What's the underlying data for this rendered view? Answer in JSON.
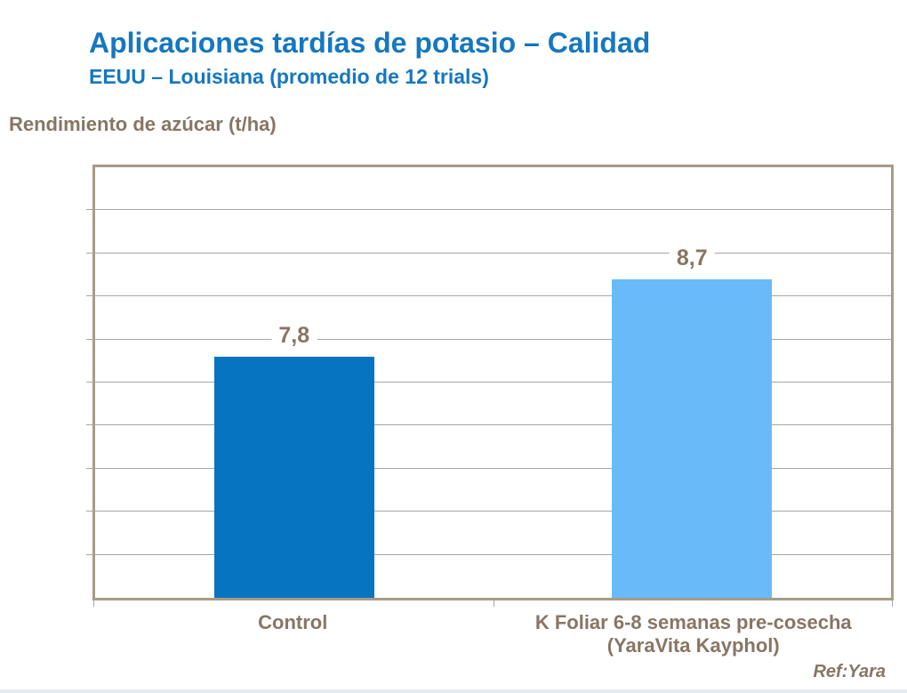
{
  "header": {
    "title": "Aplicaciones tardías de potasio – Calidad",
    "subtitle": "EEUU – Louisiana (promedio de 12 trials)"
  },
  "footer": {
    "reference": "Ref:Yara"
  },
  "colors": {
    "heading_blue": "#1577C0",
    "text_brown": "#877663",
    "bar_control": "#0774C2",
    "bar_treatment": "#68BBF8",
    "plot_border": "#A89B89",
    "gridline": "#A6A6A6",
    "bottom_strip": "#E4EBF3"
  },
  "chart_data": {
    "type": "bar",
    "title": "Aplicaciones tardías de potasio – Calidad",
    "subtitle": "EEUU – Louisiana (promedio de 12 trials)",
    "ylabel": "Rendimiento de azúcar (t/ha)",
    "xlabel": "",
    "categories": [
      "Control",
      "K Foliar 6-8 semanas pre-cosecha\n(YaraVita Kayphol)"
    ],
    "values": [
      7.8,
      8.7
    ],
    "value_labels": [
      "7,8",
      "8,7"
    ],
    "bar_colors": [
      "#0774C2",
      "#68BBF8"
    ],
    "ylim": [
      5,
      10
    ],
    "gridline_step": 0.5,
    "grid": true,
    "y_tick_labels_visible": false,
    "legend_position": "none",
    "annotation": "Ref:Yara"
  }
}
